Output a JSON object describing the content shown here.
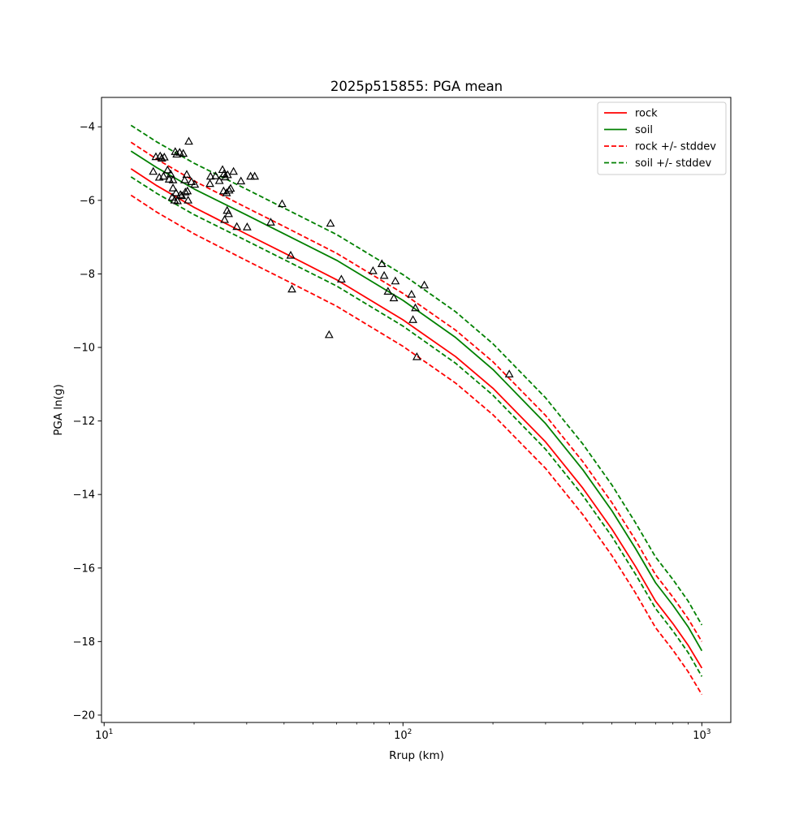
{
  "chart_data": {
    "type": "scatter",
    "title": "2025p515855: PGA mean",
    "xlabel": "Rrup (km)",
    "ylabel": "PGA ln(g)",
    "xscale": "log",
    "xlim": [
      9.8,
      1250
    ],
    "ylim": [
      -20.2,
      -3.2
    ],
    "xticks": [
      {
        "value": 10,
        "base": "10",
        "exp": "1"
      },
      {
        "value": 100,
        "base": "10",
        "exp": "2"
      },
      {
        "value": 1000,
        "base": "10",
        "exp": "3"
      }
    ],
    "yticks": [
      {
        "value": -4,
        "label": "−4"
      },
      {
        "value": -6,
        "label": "−6"
      },
      {
        "value": -8,
        "label": "−8"
      },
      {
        "value": -10,
        "label": "−10"
      },
      {
        "value": -12,
        "label": "−12"
      },
      {
        "value": -14,
        "label": "−14"
      },
      {
        "value": -16,
        "label": "−16"
      },
      {
        "value": -18,
        "label": "−18"
      },
      {
        "value": -20,
        "label": "−20"
      }
    ],
    "grid": false,
    "legend_position": "top-right",
    "legend": [
      {
        "label": "rock",
        "color": "#ff0000",
        "dash": false
      },
      {
        "label": "soil",
        "color": "#008000",
        "dash": false
      },
      {
        "label": "rock +/- stddev",
        "color": "#ff0000",
        "dash": true
      },
      {
        "label": "soil +/- stddev",
        "color": "#008000",
        "dash": true
      }
    ],
    "series": [
      {
        "name": "rock",
        "color": "#ff0000",
        "dash": false,
        "x": [
          12.3,
          15,
          20,
          30,
          40,
          60,
          100,
          150,
          200,
          300,
          400,
          500,
          600,
          700,
          800,
          900,
          1000
        ],
        "y": [
          -5.14,
          -5.6,
          -6.19,
          -6.92,
          -7.43,
          -8.16,
          -9.25,
          -10.25,
          -11.11,
          -12.57,
          -13.83,
          -14.94,
          -15.96,
          -16.9,
          -17.51,
          -18.1,
          -18.72
        ]
      },
      {
        "name": "soil",
        "color": "#008000",
        "dash": false,
        "x": [
          12.3,
          15,
          20,
          30,
          40,
          60,
          100,
          150,
          200,
          300,
          400,
          500,
          600,
          700,
          800,
          900,
          1000
        ],
        "y": [
          -4.66,
          -5.11,
          -5.69,
          -6.4,
          -6.91,
          -7.63,
          -8.72,
          -9.73,
          -10.6,
          -12.07,
          -13.33,
          -14.44,
          -15.47,
          -16.4,
          -17.01,
          -17.6,
          -18.25
        ]
      },
      {
        "name": "rock +/- stddev",
        "color": "#ff0000",
        "dash": true,
        "x": [
          12.3,
          15,
          20,
          30,
          40,
          60,
          100,
          150,
          200,
          300,
          400,
          500,
          600,
          700,
          800,
          900,
          1000
        ],
        "y": [
          -4.42,
          -4.88,
          -5.47,
          -6.2,
          -6.71,
          -7.44,
          -8.53,
          -9.53,
          -10.39,
          -11.85,
          -13.11,
          -14.22,
          -15.24,
          -16.18,
          -16.79,
          -17.38,
          -18.0
        ]
      },
      {
        "name": "rock +/- stddev",
        "color": "#ff0000",
        "dash": true,
        "x": [
          12.3,
          15,
          20,
          30,
          40,
          60,
          100,
          150,
          200,
          300,
          400,
          500,
          600,
          700,
          800,
          900,
          1000
        ],
        "y": [
          -5.86,
          -6.32,
          -6.91,
          -7.64,
          -8.15,
          -8.88,
          -9.97,
          -10.97,
          -11.83,
          -13.29,
          -14.55,
          -15.66,
          -16.68,
          -17.62,
          -18.23,
          -18.82,
          -19.44
        ]
      },
      {
        "name": "soil +/- stddev",
        "color": "#008000",
        "dash": true,
        "x": [
          12.3,
          15,
          20,
          30,
          40,
          60,
          100,
          150,
          200,
          300,
          400,
          500,
          600,
          700,
          800,
          900,
          1000
        ],
        "y": [
          -3.96,
          -4.41,
          -4.99,
          -5.7,
          -6.21,
          -6.93,
          -8.02,
          -9.03,
          -9.9,
          -11.37,
          -12.63,
          -13.74,
          -14.77,
          -15.7,
          -16.31,
          -16.9,
          -17.55
        ]
      },
      {
        "name": "soil +/- stddev",
        "color": "#008000",
        "dash": true,
        "x": [
          12.3,
          15,
          20,
          30,
          40,
          60,
          100,
          150,
          200,
          300,
          400,
          500,
          600,
          700,
          800,
          900,
          1000
        ],
        "y": [
          -5.36,
          -5.81,
          -6.39,
          -7.1,
          -7.61,
          -8.33,
          -9.42,
          -10.43,
          -11.3,
          -12.77,
          -14.03,
          -15.14,
          -16.17,
          -17.1,
          -17.71,
          -18.3,
          -18.95
        ]
      }
    ],
    "observations": {
      "marker": "triangle",
      "x": [
        14.9,
        15.4,
        15.6,
        15.9,
        16.3,
        16.7,
        17.0,
        17.3,
        17.5,
        17.9,
        18.4,
        18.9,
        19.2,
        19.6,
        20.1,
        14.6,
        15.3,
        15.8,
        16.5,
        17.0,
        17.4,
        18.0,
        18.6,
        19.0,
        16.9,
        17.2,
        17.6,
        18.2,
        18.7,
        19.1,
        22.7,
        23.6,
        24.3,
        24.9,
        25.4,
        25.9,
        26.5,
        27.1,
        28.7,
        30.9,
        31.9,
        22.6,
        25.1,
        25.7,
        26.2,
        25.3,
        25.8,
        26.1,
        27.8,
        30.1,
        25.2,
        36.1,
        39.4,
        42.1,
        42.5,
        56.6,
        57.2,
        62.2,
        79.4,
        85.0,
        86.5,
        89.1,
        93.2,
        94.3,
        106.8,
        108.0,
        110.0,
        117.9,
        111.3,
        226.8
      ],
      "y": [
        -4.82,
        -4.8,
        -4.86,
        -4.83,
        -5.18,
        -5.29,
        -5.45,
        -4.68,
        -4.75,
        -4.7,
        -4.73,
        -5.3,
        -4.4,
        -5.5,
        -5.57,
        -5.22,
        -5.38,
        -5.35,
        -5.43,
        -5.67,
        -5.8,
        -5.85,
        -5.45,
        -5.75,
        -5.92,
        -6.0,
        -6.02,
        -5.88,
        -5.78,
        -6.0,
        -5.35,
        -5.34,
        -5.47,
        -5.17,
        -5.37,
        -5.31,
        -5.68,
        -5.22,
        -5.48,
        -5.35,
        -5.35,
        -5.55,
        -5.75,
        -5.8,
        -5.73,
        -6.53,
        -6.28,
        -6.37,
        -6.72,
        -6.73,
        -5.28,
        -6.6,
        -6.1,
        -7.5,
        -8.42,
        -9.66,
        -6.63,
        -8.15,
        -7.92,
        -7.73,
        -8.05,
        -8.48,
        -8.66,
        -8.2,
        -8.56,
        -9.25,
        -8.93,
        -8.31,
        -10.26,
        -10.73
      ]
    }
  }
}
